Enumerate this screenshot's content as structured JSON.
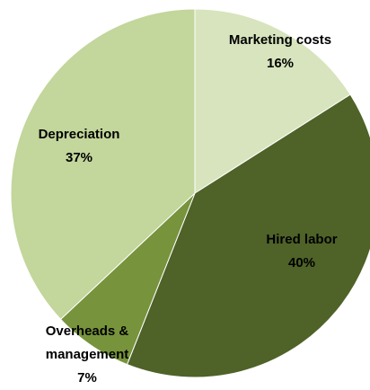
{
  "chart_data": {
    "type": "pie",
    "categories": [
      "Marketing costs",
      "Hired labor",
      "Overheads & management",
      "Depreciation"
    ],
    "values": [
      16,
      40,
      7,
      37
    ],
    "value_labels": [
      "16%",
      "40%",
      "7%",
      "37%"
    ],
    "colors": [
      "#d7e4bd",
      "#4f6228",
      "#77933c",
      "#c3d69b"
    ]
  }
}
